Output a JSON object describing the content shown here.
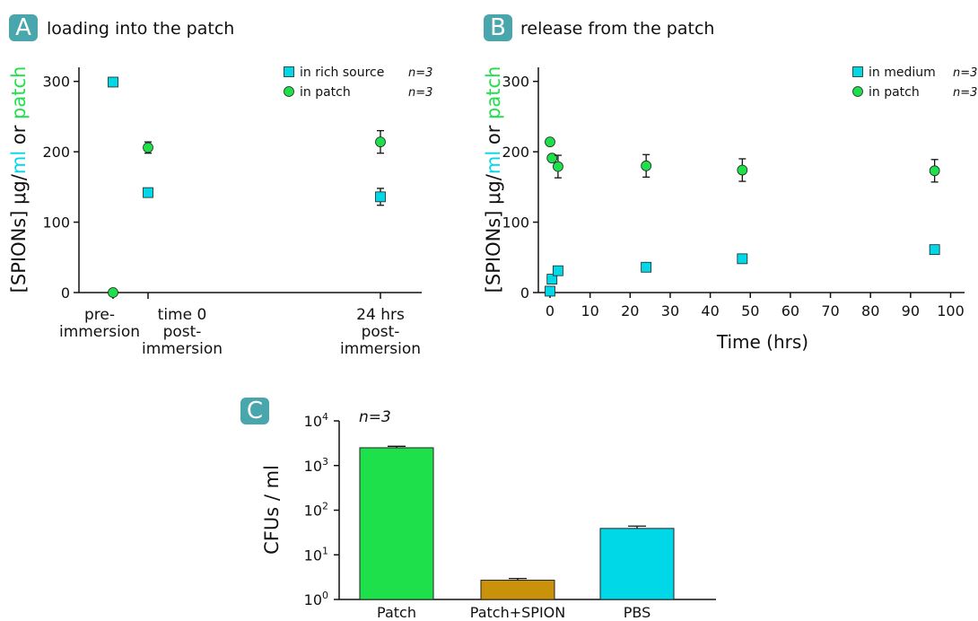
{
  "panels": {
    "a": {
      "letter": "A",
      "title": "loading into the patch"
    },
    "b": {
      "letter": "B",
      "title": "release from the patch"
    },
    "c": {
      "letter": "C"
    }
  },
  "colors": {
    "cyan": "#00d8e8",
    "green": "#1ee04a",
    "gold": "#c9920a",
    "badge": "#4aa6ad"
  },
  "ylabel_parts": {
    "prefix": "[SPIONs] μg/",
    "ml": "ml",
    "or": " or ",
    "patch": "patch"
  },
  "chart_data": [
    {
      "panel": "A",
      "type": "scatter",
      "title": "loading into the patch",
      "ylabel": "[SPIONs] μg/ml or patch",
      "ylim": [
        0,
        320
      ],
      "yticks": [
        0,
        100,
        200,
        300
      ],
      "categories": [
        {
          "x": 0,
          "lines": [
            "pre-",
            "immersion"
          ]
        },
        {
          "x": 1,
          "lines": [
            "time 0",
            "post-",
            "immersion"
          ]
        },
        {
          "x": 2,
          "lines": [
            "24 hrs",
            "post-",
            "immersion"
          ]
        }
      ],
      "series": [
        {
          "name": "in rich source",
          "n": "n=3",
          "marker": "square",
          "color": "#00d8e8",
          "points": [
            {
              "x": 0,
              "y": 299,
              "err": 4
            },
            {
              "x": 1,
              "y": 142,
              "err": 3
            },
            {
              "x": 2,
              "y": 136,
              "err": 12
            }
          ]
        },
        {
          "name": "in patch",
          "n": "n=3",
          "marker": "circle",
          "color": "#1ee04a",
          "points": [
            {
              "x": 0,
              "y": 0,
              "err": 0
            },
            {
              "x": 1,
              "y": 206,
              "err": 8
            },
            {
              "x": 2,
              "y": 214,
              "err": 16
            }
          ]
        }
      ]
    },
    {
      "panel": "B",
      "type": "scatter",
      "title": "release from the patch",
      "xlabel": "Time (hrs)",
      "ylabel": "[SPIONs] μg/ml or patch",
      "xlim": [
        -2,
        102
      ],
      "ylim": [
        0,
        320
      ],
      "xticks": [
        0,
        10,
        20,
        30,
        40,
        50,
        60,
        70,
        80,
        90,
        100
      ],
      "yticks": [
        0,
        100,
        200,
        300
      ],
      "series": [
        {
          "name": "in medium",
          "n": "n=3",
          "marker": "square",
          "color": "#00d8e8",
          "points": [
            {
              "x": 0,
              "y": 2,
              "err": 0
            },
            {
              "x": 0.5,
              "y": 19,
              "err": 0
            },
            {
              "x": 2,
              "y": 31,
              "err": 0
            },
            {
              "x": 24,
              "y": 36,
              "err": 0
            },
            {
              "x": 48,
              "y": 48,
              "err": 0
            },
            {
              "x": 96,
              "y": 61,
              "err": 0
            }
          ]
        },
        {
          "name": "in patch",
          "n": "n=3",
          "marker": "circle",
          "color": "#1ee04a",
          "points": [
            {
              "x": 0,
              "y": 214,
              "err": 0
            },
            {
              "x": 0.5,
              "y": 191,
              "err": 0
            },
            {
              "x": 2,
              "y": 179,
              "err": 16
            },
            {
              "x": 24,
              "y": 180,
              "err": 16
            },
            {
              "x": 48,
              "y": 174,
              "err": 16
            },
            {
              "x": 96,
              "y": 173,
              "err": 16
            }
          ]
        }
      ]
    },
    {
      "panel": "C",
      "type": "bar",
      "annotation": "n=3",
      "ylabel": "CFUs / ml",
      "yscale": "log",
      "ylim": [
        1,
        10000
      ],
      "yticks": [
        1,
        10,
        100,
        1000,
        10000
      ],
      "categories": [
        "Patch",
        "Patch+SPION",
        "PBS"
      ],
      "values": [
        2500,
        2.7,
        39
      ],
      "errors_upper": [
        2700,
        2.95,
        44
      ],
      "colors": [
        "#1ee04a",
        "#c9920a",
        "#00d8e8"
      ]
    }
  ]
}
